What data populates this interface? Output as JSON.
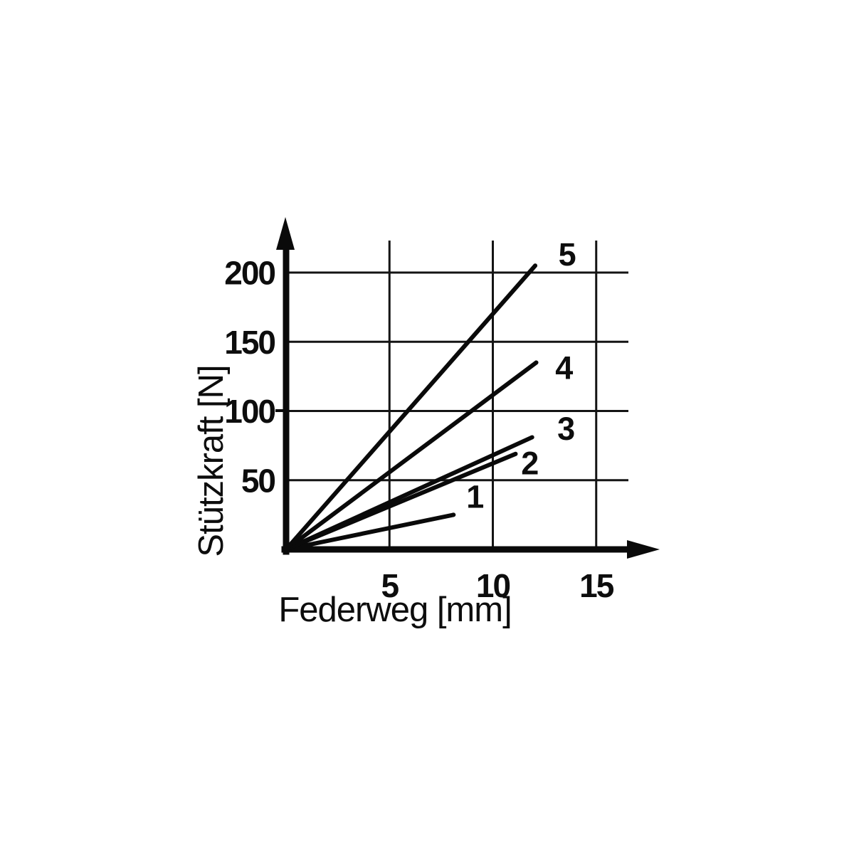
{
  "page": {
    "background": "#ffffff",
    "ink_color": "#0d0d0d"
  },
  "chart_data": {
    "type": "line",
    "title": "",
    "xlabel": "Federweg [mm]",
    "ylabel": "Stützkraft [N]",
    "xlim": [
      0,
      18
    ],
    "ylim": [
      0,
      240
    ],
    "grid": true,
    "legend_position": "inline-curve-numbers",
    "x_ticks": [
      {
        "value": 5,
        "label": "5"
      },
      {
        "value": 10,
        "label": "10"
      },
      {
        "value": 15,
        "label": "15"
      }
    ],
    "y_ticks": [
      {
        "value": 50,
        "label": "50"
      },
      {
        "value": 100,
        "label": "100"
      },
      {
        "value": 150,
        "label": "150"
      },
      {
        "value": 200,
        "label": "200"
      }
    ],
    "series": [
      {
        "label": "1",
        "points": [
          [
            0,
            0
          ],
          [
            8.1,
            25
          ]
        ],
        "label_at": [
          9.15,
          38.5
        ]
      },
      {
        "label": "2",
        "points": [
          [
            0,
            0
          ],
          [
            11.1,
            69
          ]
        ],
        "label_at": [
          11.8,
          62.5
        ]
      },
      {
        "label": "3",
        "points": [
          [
            0,
            0
          ],
          [
            11.9,
            81
          ]
        ],
        "label_at": [
          13.55,
          87.5
        ]
      },
      {
        "label": "4",
        "points": [
          [
            0,
            0
          ],
          [
            12.1,
            135
          ]
        ],
        "label_at": [
          13.45,
          131.5
        ]
      },
      {
        "label": "5",
        "points": [
          [
            0,
            0
          ],
          [
            12.05,
            205
          ]
        ],
        "label_at": [
          13.6,
          213.5
        ]
      }
    ]
  }
}
